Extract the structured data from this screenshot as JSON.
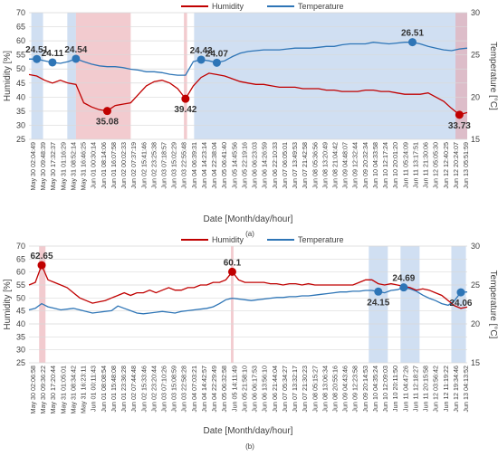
{
  "colors": {
    "humidity": "#c00000",
    "temperature": "#2e75b6",
    "highlight_red": "#e8a0a8",
    "highlight_blue": "#a9c4e8",
    "grid": "#d9d9d9",
    "text": "#404040"
  },
  "chart_data": [
    {
      "type": "line",
      "panel_label": "(a)",
      "legend": [
        "Humidity",
        "Temperature"
      ],
      "legend_position": "top-center",
      "xlabel": "Date [Month/day/hour]",
      "ylabel_left": "Humidity [%]",
      "ylabel_right": "Temperature [°C]",
      "ylim_left": [
        25,
        70
      ],
      "yticks_left": [
        25,
        30,
        35,
        40,
        45,
        50,
        55,
        60,
        65,
        70
      ],
      "ylim_right": [
        15,
        30
      ],
      "yticks_right": [
        15,
        20,
        25,
        30
      ],
      "grid": true,
      "x_ticks": [
        "May 30 02:04:49",
        "May 30 09:48:39",
        "May 30 17:32:37",
        "May 31 01:16:29",
        "May 31 08:52:14",
        "May 31 16:46:25",
        "Jun 01 00:30:14",
        "Jun 01 08:14:06",
        "Jun 01 16:07:58",
        "Jun 02 00:02:33",
        "Jun 02 07:37:19",
        "Jun 02 15:41:46",
        "Jun 02 23:25:38",
        "Jun 03 07:18:57",
        "Jun 03 15:02:29",
        "Jun 03 22:55:48",
        "Jun 04 06:39:31",
        "Jun 04 14:23:14",
        "Jun 04 22:38:04",
        "Jun 05 06:41:40",
        "Jun 05 14:45:56",
        "Jun 05 22:19:16",
        "Jun 06 06:23:03",
        "Jun 06 14:26:59",
        "Jun 06 22:10:33",
        "Jun 07 06:05:01",
        "Jun 07 13:49:53",
        "Jun 07 21:42:58",
        "Jun 08 05:36:56",
        "Jun 08 13:20:49",
        "Jun 08 21:04:42",
        "Jun 09 04:48:07",
        "Jun 09 12:32:44",
        "Jun 09 20:32:34",
        "Jun 10 04:33:58",
        "Jun 10 12:17:24",
        "Jun 10 20:01:20",
        "Jun 11 05:24:09",
        "Jun 11 13:17:51",
        "Jun 11 21:30:06",
        "Jun 12 05:05:30",
        "Jun 12 12:40:25",
        "Jun 12 20:24:07",
        "Jun 13 05:51:59"
      ],
      "humidity": [
        48,
        47.5,
        46,
        45,
        46,
        45,
        44.5,
        38,
        36.5,
        35.5,
        35.08,
        37,
        37.5,
        38,
        41,
        44,
        45.5,
        46,
        45,
        43,
        39.42,
        44,
        47,
        48.5,
        48,
        47.5,
        46.5,
        45.5,
        45,
        44.5,
        44.5,
        44,
        43.5,
        43.5,
        43.5,
        43,
        43,
        43,
        42.5,
        42.5,
        42,
        42,
        42,
        42.5,
        42.5,
        42,
        42,
        41.5,
        41,
        41,
        41,
        41.5,
        40,
        38.5,
        36,
        33.73,
        34.5
      ],
      "temperature": [
        24.5,
        24.51,
        24.3,
        24.11,
        24,
        24.2,
        24.54,
        24.2,
        23.9,
        23.7,
        23.6,
        23.6,
        23.5,
        23.3,
        23.2,
        23.0,
        23.0,
        22.9,
        22.7,
        22.6,
        22.6,
        24.2,
        24.43,
        24.3,
        24.07,
        24.3,
        24.8,
        25.2,
        25.4,
        25.5,
        25.6,
        25.6,
        25.6,
        25.7,
        25.8,
        25.8,
        25.8,
        25.9,
        26.0,
        26.0,
        26.2,
        26.3,
        26.3,
        26.3,
        26.5,
        26.4,
        26.3,
        26.4,
        26.5,
        26.51,
        26.3,
        26.0,
        25.8,
        25.6,
        25.5,
        25.7,
        25.8
      ],
      "annotations": [
        {
          "series": "temperature",
          "index": 1,
          "label": "24.51"
        },
        {
          "series": "temperature",
          "index": 3,
          "label": "24.11"
        },
        {
          "series": "temperature",
          "index": 6,
          "label": "24.54"
        },
        {
          "series": "humidity",
          "index": 10,
          "label": "35.08"
        },
        {
          "series": "humidity",
          "index": 20,
          "label": "39.42"
        },
        {
          "series": "temperature",
          "index": 22,
          "label": "24.43"
        },
        {
          "series": "temperature",
          "index": 24,
          "label": "24.07"
        },
        {
          "series": "temperature",
          "index": 49,
          "label": "26.51"
        },
        {
          "series": "humidity",
          "index": 55,
          "label": "33.73"
        }
      ],
      "highlights": [
        {
          "color": "blue",
          "from": 0.3,
          "to": 1.8
        },
        {
          "color": "blue",
          "from": 4.9,
          "to": 6.0
        },
        {
          "color": "red",
          "from": 6.0,
          "to": 13.0
        },
        {
          "color": "red",
          "from": 19.8,
          "to": 20.2
        },
        {
          "color": "blue",
          "from": 21.1,
          "to": 57.0
        },
        {
          "color": "red",
          "from": 54.5,
          "to": 57.0
        }
      ]
    },
    {
      "type": "line",
      "panel_label": "(b)",
      "legend": [
        "Humidity",
        "Temperature"
      ],
      "legend_position": "top-center",
      "xlabel": "Date [Month/day/hour]",
      "ylabel_left": "Humidity [%]",
      "ylabel_right": "Temperature [°C]",
      "ylim_left": [
        25,
        70
      ],
      "yticks_left": [
        25,
        30,
        35,
        40,
        45,
        50,
        55,
        60,
        65,
        70
      ],
      "ylim_right": [
        15,
        30
      ],
      "yticks_right": [
        15,
        20,
        25,
        30
      ],
      "grid": true,
      "x_ticks": [
        "May 30 02:06:58",
        "May 30 09:36:22",
        "May 30 17:20:44",
        "May 31 01:05:01",
        "May 31 08:34:42",
        "May 31 16:23:11",
        "Jun 01 00:11:43",
        "Jun 01 08:08:54",
        "Jun 01 15:48:08",
        "Jun 01 23:36:28",
        "Jun 02 07:44:48",
        "Jun 02 15:33:46",
        "Jun 02 23:20:44",
        "Jun 03 07:10:26",
        "Jun 03 15:08:59",
        "Jun 03 22:58:28",
        "Jun 04 07:03:21",
        "Jun 04 14:42:57",
        "Jun 04 22:29:49",
        "Jun 05 06:32:58",
        "Jun 05 14:11:49",
        "Jun 05 21:58:10",
        "Jun 06 06:17:53",
        "Jun 06 13:56:10",
        "Jun 06 21:44:04",
        "Jun 07 05:34:27",
        "Jun 07 13:32:17",
        "Jun 07 21:30:23",
        "Jun 08 05:15:27",
        "Jun 08 13:06:34",
        "Jun 08 20:55:16",
        "Jun 09 04:43:46",
        "Jun 09 12:23:58",
        "Jun 09 20:14:53",
        "Jun 10 04:35:24",
        "Jun 10 12:09:03",
        "Jun 10 20:11:50",
        "Jun 11 04:47:26",
        "Jun 11 12:18:27",
        "Jun 11 20:15:58",
        "Jun 12 03:56:42",
        "Jun 12 11:19:22",
        "Jun 12 19:34:46",
        "Jun 13 04:13:52"
      ],
      "humidity": [
        55,
        56,
        62.65,
        57,
        56,
        55,
        54,
        52,
        50,
        49,
        48,
        48.5,
        49,
        50,
        51,
        52,
        51,
        52,
        52,
        53,
        52,
        53,
        54,
        53,
        53,
        54,
        54,
        55,
        55,
        56,
        56,
        57,
        60.1,
        57,
        56,
        56,
        56,
        56,
        55.5,
        55.5,
        55,
        55.5,
        55.5,
        55,
        55.5,
        55,
        55,
        55,
        55,
        55,
        55,
        55,
        56,
        57,
        57,
        55.5,
        55,
        55.5,
        55,
        54.5,
        54,
        53,
        53.5,
        53,
        52,
        51,
        49,
        47,
        46,
        46.5
      ],
      "temperature": [
        21.8,
        22.0,
        22.6,
        22.2,
        22.0,
        21.8,
        21.9,
        22.0,
        21.8,
        21.6,
        21.4,
        21.5,
        21.6,
        21.7,
        22.3,
        22.0,
        21.7,
        21.4,
        21.3,
        21.4,
        21.5,
        21.6,
        21.5,
        21.4,
        21.6,
        21.7,
        21.8,
        21.9,
        22.0,
        22.2,
        22.6,
        23.1,
        23.3,
        23.2,
        23.1,
        23.0,
        23.1,
        23.2,
        23.3,
        23.4,
        23.4,
        23.5,
        23.5,
        23.6,
        23.6,
        23.7,
        23.8,
        23.9,
        24.0,
        24.1,
        24.1,
        24.2,
        24.2,
        24.3,
        24.3,
        24.15,
        24.0,
        24.3,
        24.4,
        24.69,
        24.5,
        24.2,
        23.7,
        23.3,
        23.0,
        22.6,
        22.4,
        23.0,
        24.06,
        24.1
      ],
      "annotations": [
        {
          "series": "humidity",
          "index": 2,
          "label": "62.65"
        },
        {
          "series": "humidity",
          "index": 32,
          "label": "60.1"
        },
        {
          "series": "temperature",
          "index": 55,
          "label": "24.15"
        },
        {
          "series": "temperature",
          "index": 59,
          "label": "24.69"
        },
        {
          "series": "temperature",
          "index": 68,
          "label": "24.06"
        }
      ],
      "highlights": [
        {
          "color": "red",
          "from": 1.6,
          "to": 2.6
        },
        {
          "color": "red",
          "from": 31.8,
          "to": 32.2
        },
        {
          "color": "blue",
          "from": 53.5,
          "to": 56.5
        },
        {
          "color": "blue",
          "from": 58.5,
          "to": 61.5
        },
        {
          "color": "blue",
          "from": 66.5,
          "to": 68.8
        }
      ]
    }
  ]
}
